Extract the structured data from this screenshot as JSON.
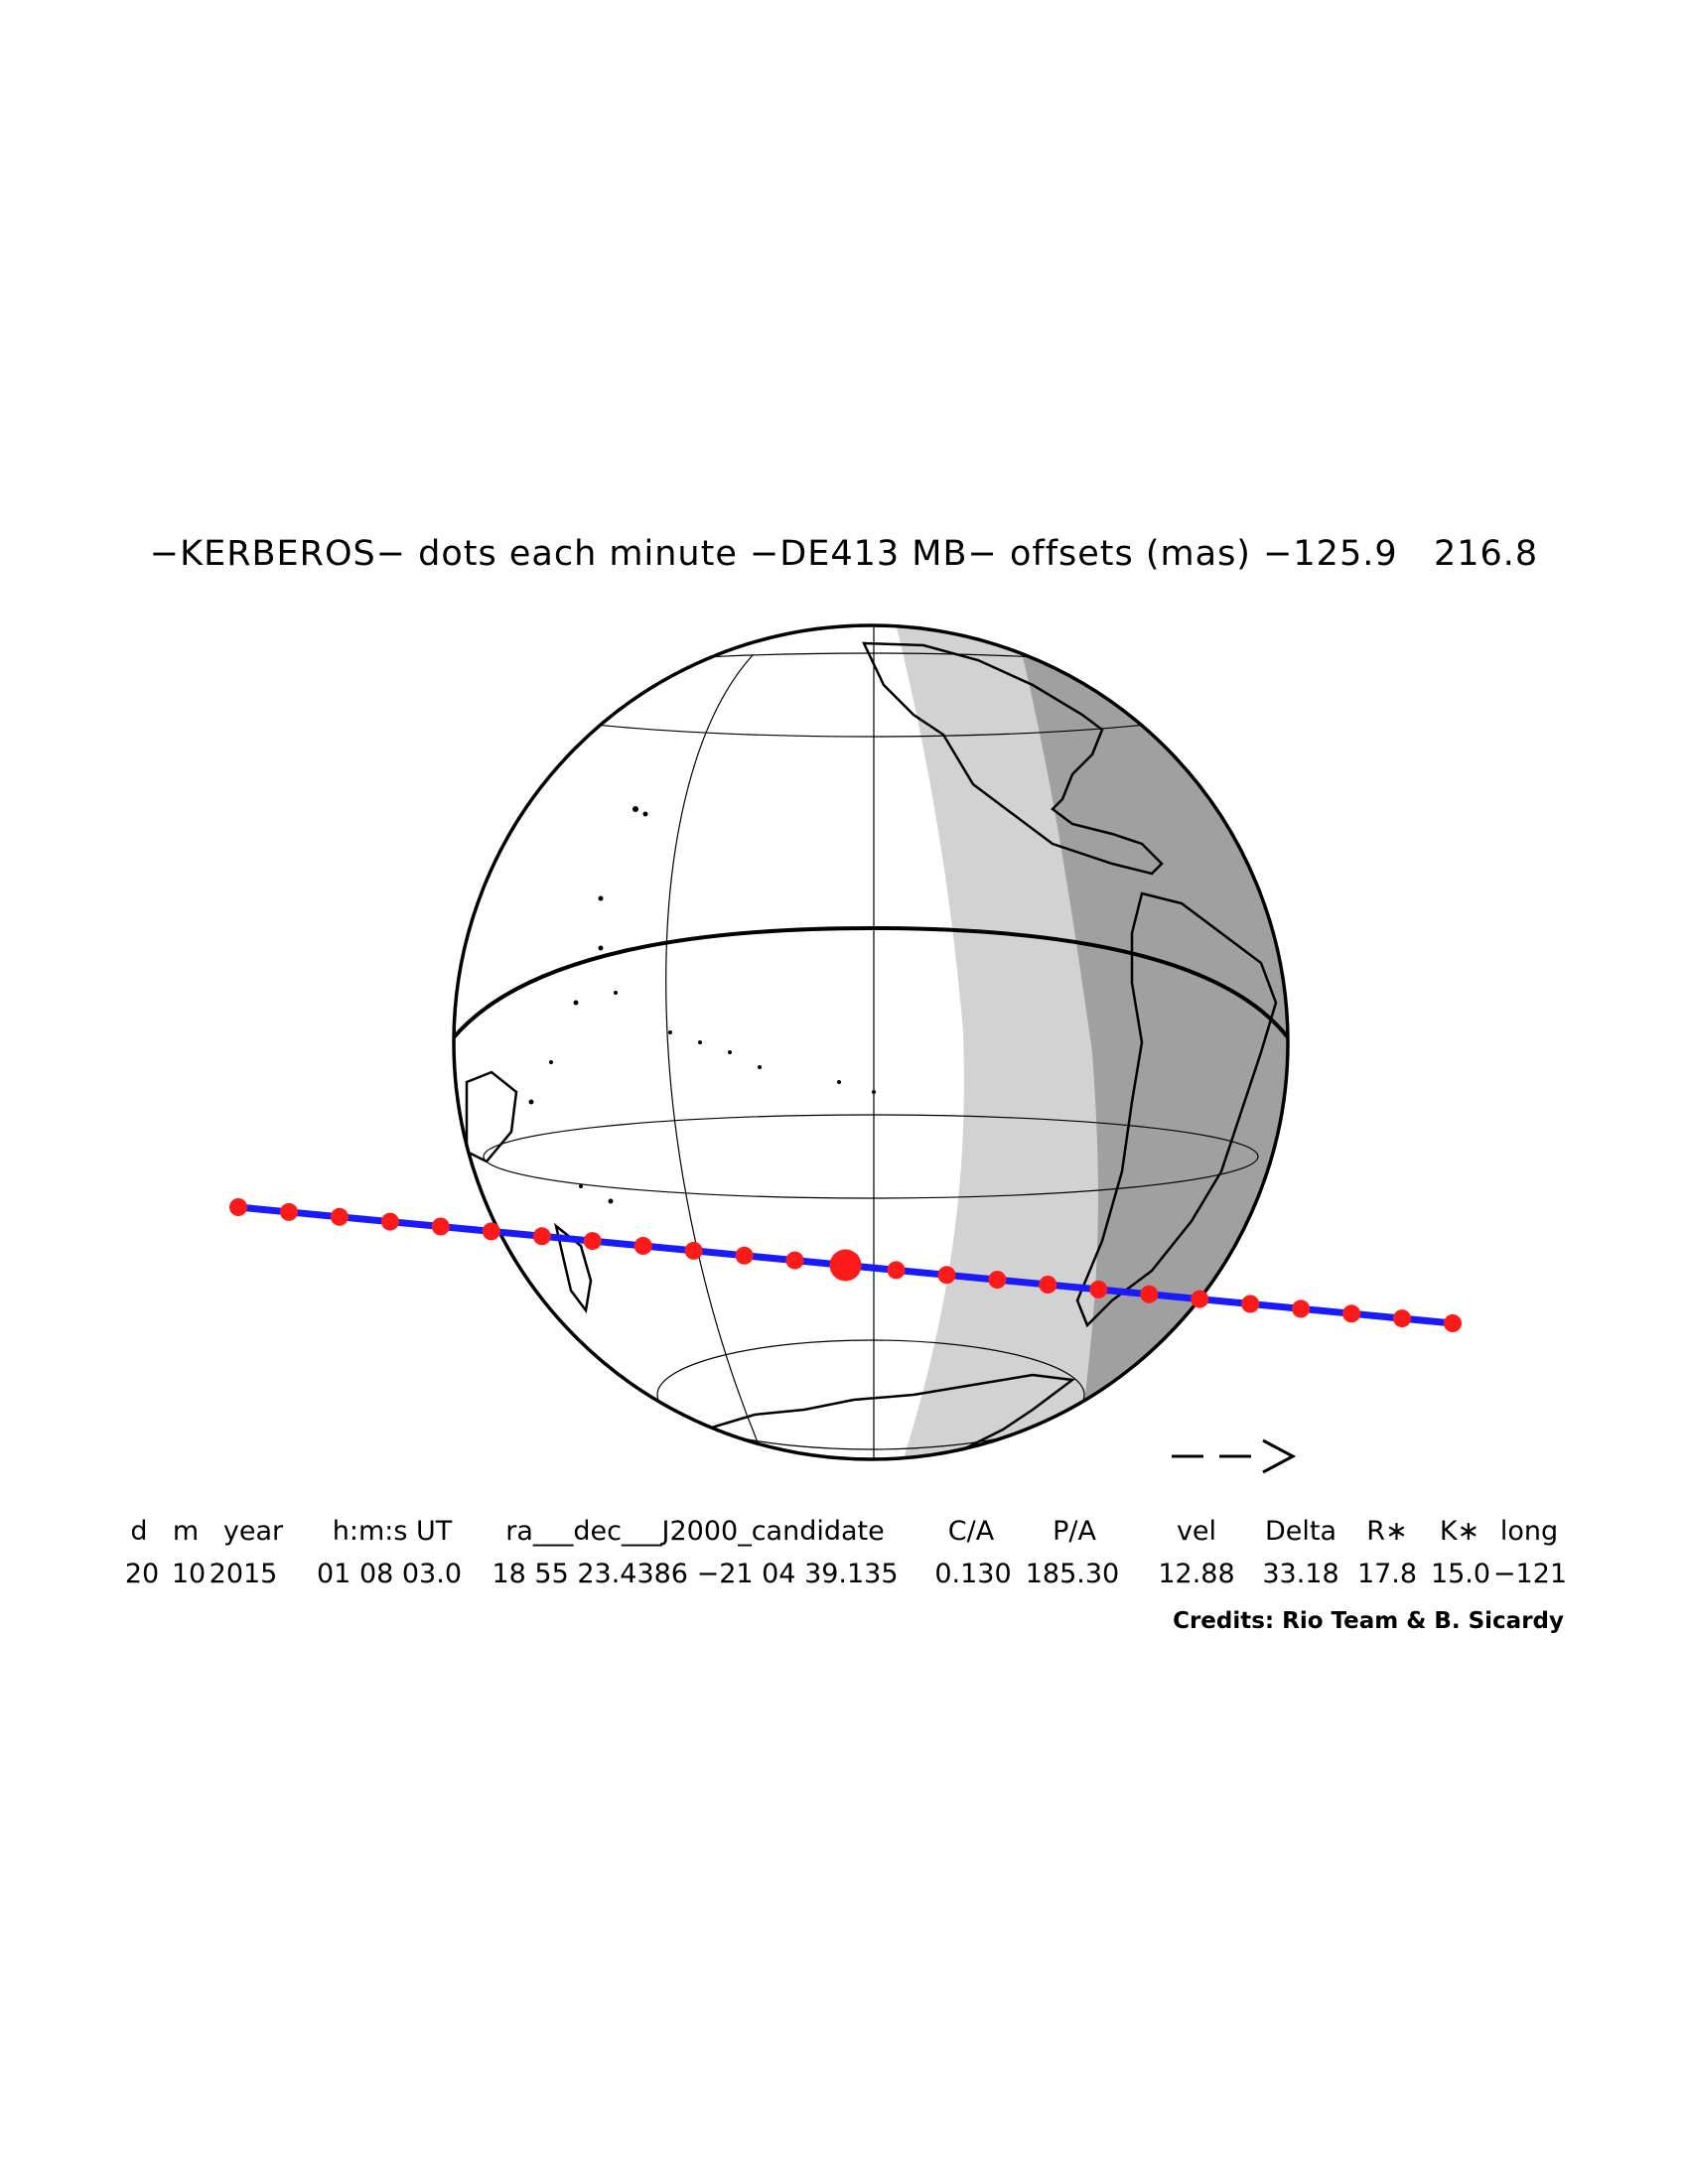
{
  "title": "−KERBEROS− dots each minute −DE413 MB− offsets (mas) −125.9   216.8",
  "direction_arrow": "−−>",
  "table": {
    "headers": [
      "d",
      "m",
      "year",
      "h:m:s UT",
      "ra___dec___J2000_candidate",
      "C/A",
      "P/A",
      "vel",
      "Delta",
      "R∗",
      "K∗",
      "long"
    ],
    "values": [
      "20",
      "10",
      "2015",
      "01 08 03.0",
      "18 55 23.4386 −21 04 39.135",
      "0.130",
      "185.30",
      "12.88",
      "33.18",
      "17.8",
      "15.0",
      "−121"
    ]
  },
  "credits": "Credits: Rio Team & B. Sicardy",
  "colors": {
    "path": "#1a1aff",
    "dots": "#ff1a1a",
    "night": "#a0a0a0",
    "twilight": "#d2d2d2"
  },
  "occultation": {
    "minute_dots": 25,
    "central_dot_index": 12
  }
}
